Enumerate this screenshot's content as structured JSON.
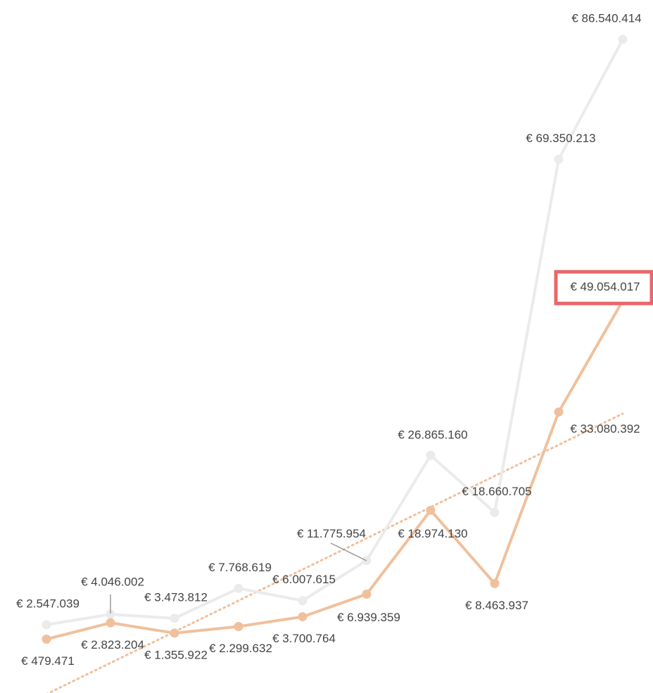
{
  "chart_data": {
    "type": "line",
    "trendline": {
      "series": 1,
      "style": "dotted"
    },
    "highlight": {
      "series": 1,
      "index": 9,
      "color": "#e8676a"
    },
    "series": [
      {
        "color": "#ebebeb",
        "values": [
          2547039,
          4046002,
          3473812,
          7768619,
          6007615,
          11775954,
          26865160,
          18660705,
          69350213,
          86540414
        ],
        "value_labels": [
          "€ 2.547.039",
          "€ 4.046.002",
          "€ 3.473.812",
          "€ 7.768.619",
          "€ 6.007.615",
          "€ 11.775.954",
          "€ 26.865.160",
          "€ 18.660.705",
          "€ 69.350.213",
          "€ 86.540.414"
        ]
      },
      {
        "color": "#f0c09c",
        "values": [
          479471,
          2823204,
          1355922,
          2299632,
          3700764,
          6939359,
          18974130,
          8463937,
          33080392,
          49054017
        ],
        "value_labels": [
          "€ 479.471",
          "€ 2.823.204",
          "€ 1.355.922",
          "€ 2.299.632",
          "€ 3.700.764",
          "€ 6.939.359",
          "€ 18.974.130",
          "€ 8.463.937",
          "€ 33.080.392",
          "€ 49.054.017"
        ]
      }
    ]
  }
}
